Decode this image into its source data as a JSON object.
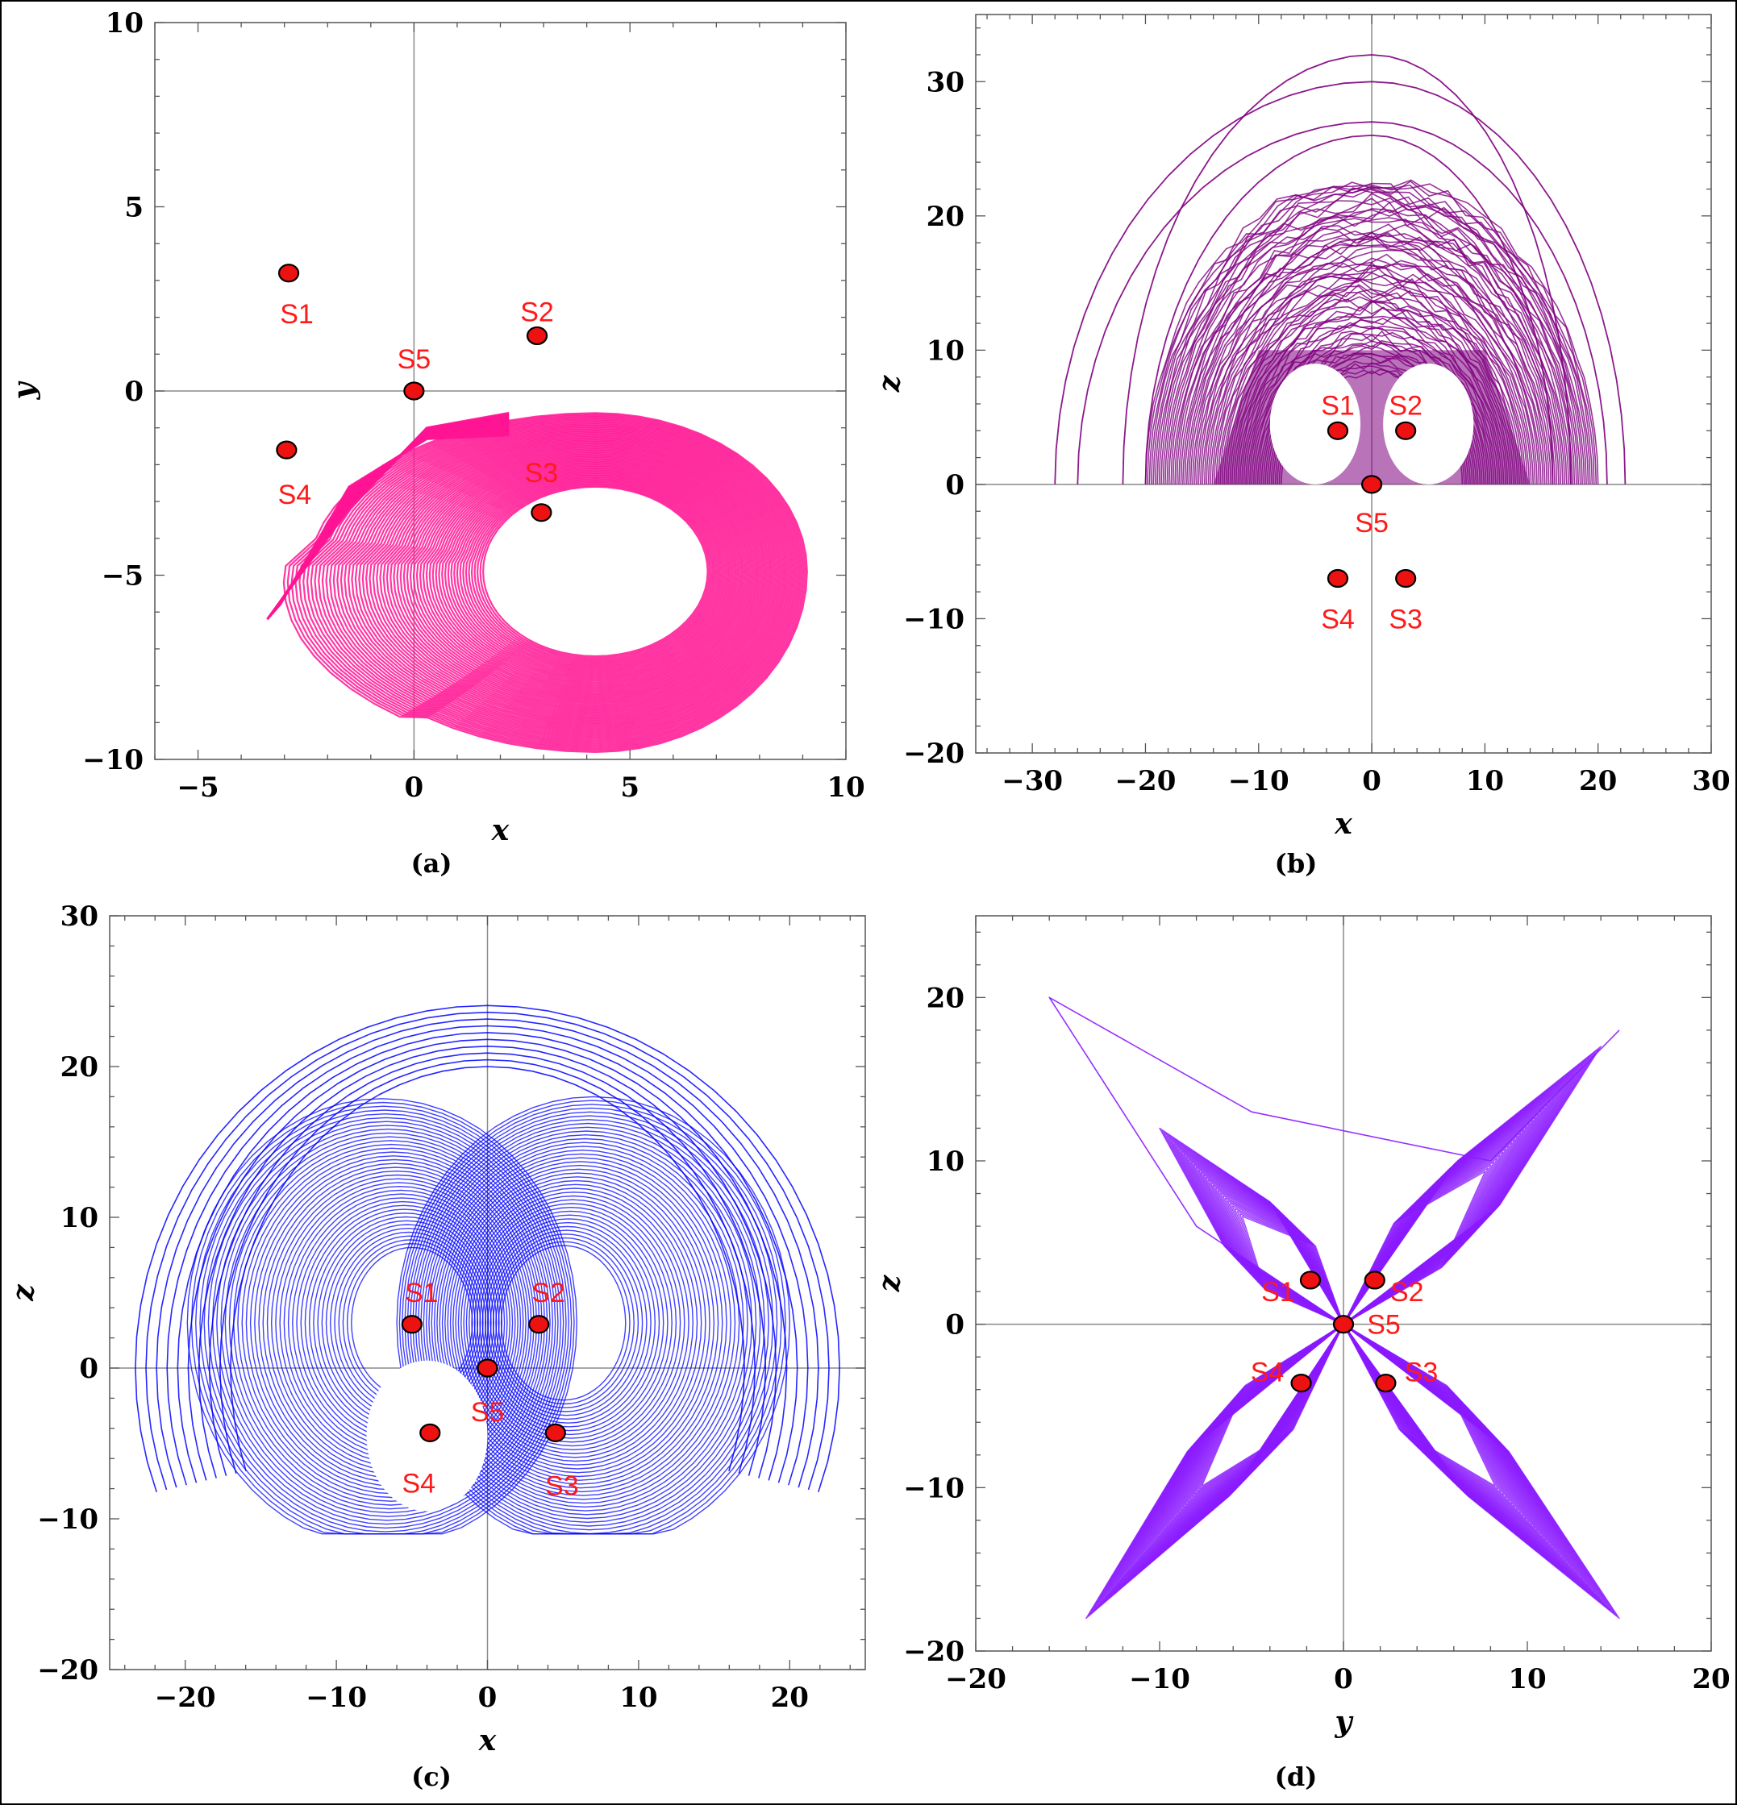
{
  "chart_data": [
    {
      "id": "a",
      "type": "scatter",
      "caption": "(a)",
      "xlabel": "x",
      "ylabel": "y",
      "xlim": [
        -6,
        10
      ],
      "ylim": [
        -10,
        10
      ],
      "xticks": [
        -5,
        0,
        5,
        10
      ],
      "yticks": [
        -10,
        -5,
        0,
        5,
        10
      ],
      "attractor_color": "#ff1493",
      "points": [
        {
          "name": "S1",
          "x": -2.9,
          "y": 3.2
        },
        {
          "name": "S2",
          "x": 2.85,
          "y": 1.5
        },
        {
          "name": "S3",
          "x": 2.95,
          "y": -3.3
        },
        {
          "name": "S4",
          "x": -2.95,
          "y": -1.6
        },
        {
          "name": "S5",
          "x": 0,
          "y": 0
        }
      ]
    },
    {
      "id": "b",
      "type": "scatter",
      "caption": "(b)",
      "xlabel": "x",
      "ylabel": "z",
      "xlim": [
        -35,
        30
      ],
      "ylim": [
        -20,
        35
      ],
      "xticks": [
        -30,
        -20,
        -10,
        0,
        10,
        20,
        30
      ],
      "yticks": [
        -20,
        -10,
        0,
        10,
        20,
        30
      ],
      "attractor_color": "#800080",
      "points": [
        {
          "name": "S1",
          "x": -3,
          "y": 4
        },
        {
          "name": "S2",
          "x": 3,
          "y": 4
        },
        {
          "name": "S3",
          "x": 3,
          "y": -7
        },
        {
          "name": "S4",
          "x": -3,
          "y": -7
        },
        {
          "name": "S5",
          "x": 0,
          "y": 0
        }
      ]
    },
    {
      "id": "c",
      "type": "scatter",
      "caption": "(c)",
      "xlabel": "x",
      "ylabel": "z",
      "xlim": [
        -25,
        25
      ],
      "ylim": [
        -20,
        30
      ],
      "xticks": [
        -20,
        -10,
        0,
        10,
        20
      ],
      "yticks": [
        -20,
        -10,
        0,
        10,
        20,
        30
      ],
      "attractor_color": "#0000ff",
      "points": [
        {
          "name": "S1",
          "x": -5,
          "y": 2.9
        },
        {
          "name": "S2",
          "x": 3.4,
          "y": 2.9
        },
        {
          "name": "S3",
          "x": 4.5,
          "y": -4.3
        },
        {
          "name": "S4",
          "x": -3.8,
          "y": -4.3
        },
        {
          "name": "S5",
          "x": 0,
          "y": 0
        }
      ]
    },
    {
      "id": "d",
      "type": "scatter",
      "caption": "(d)",
      "xlabel": "y",
      "ylabel": "z",
      "xlim": [
        -20,
        20
      ],
      "ylim": [
        -20,
        25
      ],
      "xticks": [
        -20,
        -10,
        0,
        10,
        20
      ],
      "yticks": [
        -20,
        -10,
        0,
        10,
        20
      ],
      "attractor_color": "#8b1aff",
      "points": [
        {
          "name": "S1",
          "x": -1.8,
          "y": 2.7
        },
        {
          "name": "S2",
          "x": 1.7,
          "y": 2.7
        },
        {
          "name": "S3",
          "x": 2.3,
          "y": -3.6
        },
        {
          "name": "S4",
          "x": -2.3,
          "y": -3.6
        },
        {
          "name": "S5",
          "x": 0,
          "y": 0
        }
      ]
    }
  ]
}
